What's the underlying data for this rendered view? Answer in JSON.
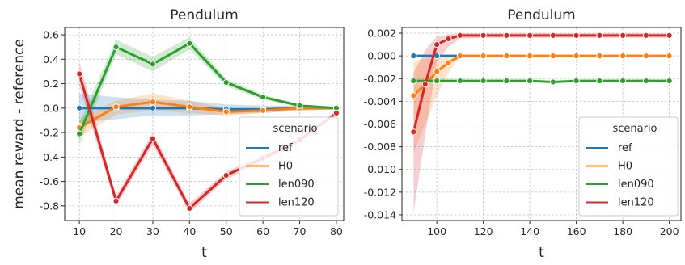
{
  "colors": {
    "ref": "#1f77b4",
    "H0": "#ff7f0e",
    "len090": "#2ca02c",
    "len120": "#d62728"
  },
  "chart_data": [
    {
      "type": "line",
      "title": "Pendulum",
      "xlabel": "t",
      "ylabel": "mean reward - reference",
      "xlim": [
        6,
        82
      ],
      "ylim": [
        -0.92,
        0.66
      ],
      "xticks": [
        10,
        20,
        30,
        40,
        50,
        60,
        70,
        80
      ],
      "yticks": [
        -0.8,
        -0.6,
        -0.4,
        -0.2,
        0.0,
        0.2,
        0.4,
        0.6
      ],
      "ytick_labels": [
        "-0.8",
        "-0.6",
        "-0.4",
        "-0.2",
        "0.0",
        "0.2",
        "0.4",
        "0.6"
      ],
      "grid": true,
      "legend": {
        "title": "scenario",
        "position": "lower-right",
        "labels": [
          "ref",
          "H0",
          "len090",
          "len120"
        ]
      },
      "series": [
        {
          "name": "ref",
          "x": [
            10,
            20,
            30,
            40,
            50,
            60,
            70,
            80
          ],
          "y": [
            0.0,
            0.0,
            0.0,
            0.0,
            -0.01,
            -0.01,
            0.0,
            0.0
          ],
          "lo": [
            -0.12,
            -0.09,
            -0.06,
            -0.06,
            -0.05,
            -0.04,
            -0.02,
            -0.01
          ],
          "hi": [
            0.12,
            0.09,
            0.07,
            0.06,
            0.03,
            0.02,
            0.02,
            0.01
          ]
        },
        {
          "name": "H0",
          "x": [
            10,
            20,
            30,
            40,
            50,
            60,
            70,
            80
          ],
          "y": [
            -0.16,
            0.01,
            0.05,
            0.01,
            -0.03,
            -0.02,
            0.0,
            0.0
          ],
          "lo": [
            -0.24,
            -0.05,
            -0.02,
            -0.04,
            -0.06,
            -0.04,
            -0.02,
            -0.01
          ],
          "hi": [
            -0.08,
            0.06,
            0.12,
            0.06,
            0.0,
            0.0,
            0.02,
            0.01
          ]
        },
        {
          "name": "len090",
          "x": [
            10,
            20,
            30,
            40,
            50,
            60,
            70,
            80
          ],
          "y": [
            -0.21,
            0.5,
            0.36,
            0.53,
            0.21,
            0.09,
            0.02,
            0.0
          ],
          "lo": [
            -0.3,
            0.44,
            0.3,
            0.48,
            0.18,
            0.07,
            0.01,
            -0.01
          ],
          "hi": [
            -0.12,
            0.56,
            0.42,
            0.58,
            0.24,
            0.11,
            0.03,
            0.01
          ]
        },
        {
          "name": "len120",
          "x": [
            10,
            20,
            30,
            40,
            50,
            60,
            70,
            80
          ],
          "y": [
            0.28,
            -0.76,
            -0.25,
            -0.82,
            -0.55,
            -0.41,
            -0.26,
            -0.04
          ],
          "lo": [
            0.18,
            -0.8,
            -0.3,
            -0.86,
            -0.58,
            -0.44,
            -0.28,
            -0.05
          ],
          "hi": [
            0.38,
            -0.72,
            -0.2,
            -0.78,
            -0.52,
            -0.38,
            -0.24,
            -0.03
          ]
        }
      ]
    },
    {
      "type": "line",
      "title": "Pendulum",
      "xlabel": "t",
      "ylabel": "",
      "xlim": [
        85,
        205
      ],
      "ylim": [
        -0.0145,
        0.0025
      ],
      "xticks": [
        100,
        120,
        140,
        160,
        180,
        200
      ],
      "yticks": [
        -0.014,
        -0.012,
        -0.01,
        -0.008,
        -0.006,
        -0.004,
        -0.002,
        0.0,
        0.002
      ],
      "ytick_labels": [
        "-0.014",
        "-0.012",
        "-0.010",
        "-0.008",
        "-0.006",
        "-0.004",
        "-0.002",
        "0.000",
        "0.002"
      ],
      "grid": true,
      "legend": {
        "title": "scenario",
        "position": "lower-right",
        "labels": [
          "ref",
          "H0",
          "len090",
          "len120"
        ]
      },
      "series": [
        {
          "name": "ref",
          "x": [
            90,
            100,
            110
          ],
          "y": [
            0.0,
            0.0,
            0.0
          ]
        },
        {
          "name": "H0",
          "x": [
            90,
            95,
            100,
            105,
            110,
            120,
            130,
            140,
            150,
            160,
            170,
            180,
            190,
            200
          ],
          "y": [
            -0.0035,
            -0.0025,
            -0.0014,
            -0.0006,
            0.0,
            0.0,
            0.0,
            0.0,
            0.0,
            0.0,
            0.0,
            0.0,
            0.0,
            0.0
          ],
          "lo": [
            -0.0085,
            -0.006,
            -0.0035,
            -0.0015,
            -0.0001,
            -0.0001,
            -0.0001,
            -0.0001,
            -0.0001,
            -0.0001,
            -0.0001,
            -0.0001,
            -0.0001,
            -0.0001
          ],
          "hi": [
            -0.0005,
            -0.0002,
            0.0,
            0.0,
            0.0001,
            0.0001,
            0.0001,
            0.0001,
            0.0001,
            0.0001,
            0.0001,
            0.0001,
            0.0001,
            0.0001
          ]
        },
        {
          "name": "len090",
          "x": [
            90,
            100,
            110,
            120,
            130,
            140,
            150,
            160,
            170,
            180,
            190,
            200
          ],
          "y": [
            -0.0022,
            -0.0022,
            -0.0022,
            -0.0022,
            -0.0022,
            -0.0022,
            -0.0023,
            -0.0022,
            -0.0022,
            -0.0022,
            -0.0022,
            -0.0022
          ]
        },
        {
          "name": "len120",
          "x": [
            90,
            95,
            100,
            105,
            110,
            120,
            130,
            140,
            150,
            160,
            170,
            180,
            190,
            200
          ],
          "y": [
            -0.0067,
            -0.0025,
            0.001,
            0.0015,
            0.0018,
            0.0018,
            0.0018,
            0.0018,
            0.0018,
            0.0018,
            0.0018,
            0.0018,
            0.0018,
            0.0018
          ],
          "lo": [
            -0.0138,
            -0.007,
            -0.0005,
            0.0008,
            0.0015,
            0.0016,
            0.0016,
            0.0016,
            0.0016,
            0.0016,
            0.0016,
            0.0016,
            0.0016,
            0.0016
          ],
          "hi": [
            -0.0015,
            0.0005,
            0.0017,
            0.0019,
            0.002,
            0.002,
            0.002,
            0.002,
            0.002,
            0.002,
            0.002,
            0.002,
            0.002,
            0.002
          ]
        }
      ]
    }
  ]
}
